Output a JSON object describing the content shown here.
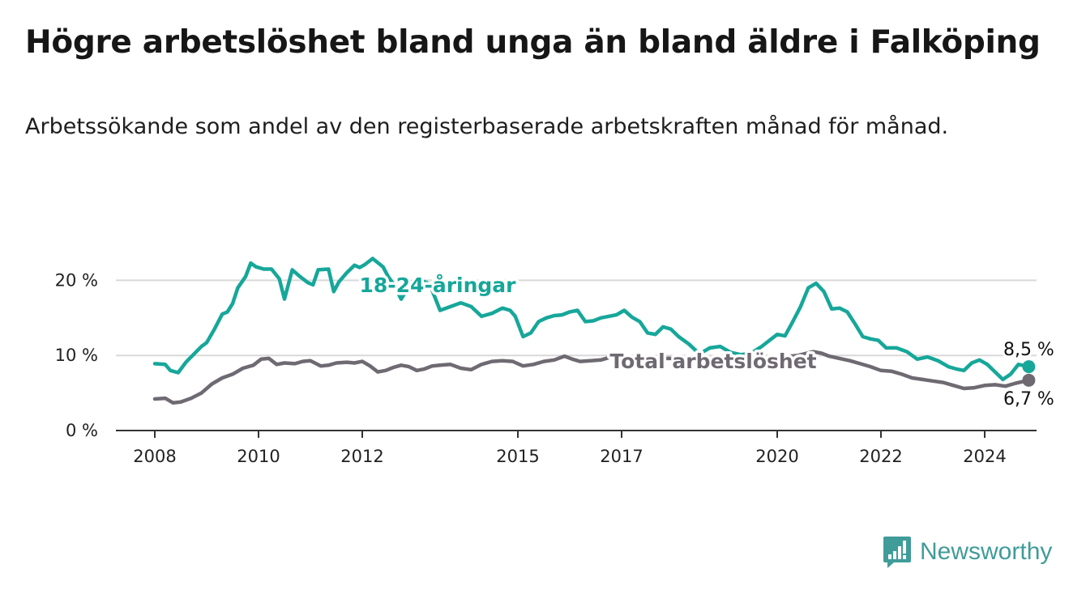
{
  "title": "Högre arbetslöshet bland unga än bland äldre i Falköping",
  "subtitle": "Arbetssökande som andel av den registerbaserade arbetskraften månad för månad.",
  "brand": "Newsworthy",
  "colors": {
    "young": "#16a79a",
    "total": "#6f6a72",
    "grid": "#d9d9d9",
    "axis": "#333333"
  },
  "chart_data": {
    "type": "line",
    "title": "Högre arbetslöshet bland unga än bland äldre i Falköping",
    "xlabel": "",
    "ylabel": "",
    "ylim": [
      0,
      25
    ],
    "xlim": [
      2007.25,
      2025.0
    ],
    "grid": true,
    "y_ticks": [
      0,
      10,
      20
    ],
    "y_tick_labels": [
      "0 %",
      "10 %",
      "20 %"
    ],
    "x_ticks": [
      2008,
      2010,
      2012,
      2015,
      2017,
      2020,
      2022,
      2024
    ],
    "x_tick_labels": [
      "2008",
      "2010",
      "2012",
      "2015",
      "2017",
      "2020",
      "2022",
      "2024"
    ],
    "series": [
      {
        "name": "18-24-åringar",
        "end_label": "8,5 %",
        "x": [
          2008.0,
          2008.2,
          2008.3,
          2008.45,
          2008.6,
          2008.8,
          2008.9,
          2009.0,
          2009.15,
          2009.3,
          2009.4,
          2009.5,
          2009.6,
          2009.75,
          2009.85,
          2009.95,
          2010.1,
          2010.25,
          2010.4,
          2010.5,
          2010.65,
          2010.8,
          2010.95,
          2011.05,
          2011.15,
          2011.35,
          2011.45,
          2011.55,
          2011.7,
          2011.85,
          2011.95,
          2012.05,
          2012.2,
          2012.4,
          2012.5,
          2012.6,
          2012.75,
          2012.95,
          2013.1,
          2013.3,
          2013.5,
          2013.7,
          2013.9,
          2014.1,
          2014.3,
          2014.5,
          2014.7,
          2014.85,
          2014.95,
          2015.1,
          2015.25,
          2015.4,
          2015.55,
          2015.7,
          2015.85,
          2016.0,
          2016.15,
          2016.3,
          2016.45,
          2016.6,
          2016.75,
          2016.9,
          2017.05,
          2017.2,
          2017.35,
          2017.5,
          2017.65,
          2017.8,
          2017.95,
          2018.1,
          2018.3,
          2018.5,
          2018.7,
          2018.9,
          2019.1,
          2019.3,
          2019.5,
          2019.7,
          2019.85,
          2020.0,
          2020.15,
          2020.3,
          2020.45,
          2020.6,
          2020.75,
          2020.9,
          2021.05,
          2021.2,
          2021.35,
          2021.5,
          2021.65,
          2021.8,
          2021.95,
          2022.1,
          2022.3,
          2022.5,
          2022.7,
          2022.9,
          2023.1,
          2023.3,
          2023.45,
          2023.6,
          2023.75,
          2023.9,
          2024.05,
          2024.2,
          2024.35,
          2024.5,
          2024.65,
          2024.85
        ],
        "values": [
          8.9,
          8.8,
          8.0,
          7.7,
          9.1,
          10.5,
          11.2,
          11.7,
          13.5,
          15.5,
          15.8,
          16.9,
          19.0,
          20.5,
          22.3,
          21.8,
          21.5,
          21.5,
          20.2,
          17.5,
          21.4,
          20.5,
          19.7,
          19.4,
          21.4,
          21.5,
          18.5,
          19.8,
          21.0,
          22.0,
          21.7,
          22.1,
          22.9,
          21.8,
          20.5,
          19.5,
          17.5,
          19.8,
          20.1,
          19.5,
          16.0,
          16.5,
          17.0,
          16.5,
          15.2,
          15.6,
          16.3,
          16.0,
          15.2,
          12.5,
          13.0,
          14.5,
          15.0,
          15.3,
          15.4,
          15.8,
          16.0,
          14.5,
          14.6,
          15.0,
          15.2,
          15.4,
          16.0,
          15.1,
          14.5,
          13.0,
          12.8,
          13.8,
          13.5,
          12.5,
          11.5,
          10.2,
          11.0,
          11.2,
          10.4,
          10.1,
          10.3,
          11.2,
          12.0,
          12.8,
          12.6,
          14.5,
          16.5,
          19.0,
          19.6,
          18.5,
          16.2,
          16.3,
          15.8,
          14.2,
          12.5,
          12.2,
          12.0,
          11.0,
          11.0,
          10.5,
          9.5,
          9.8,
          9.3,
          8.5,
          8.2,
          8.0,
          9.0,
          9.4,
          8.8,
          7.8,
          6.8,
          7.5,
          8.8,
          8.5
        ]
      },
      {
        "name": "Total arbetslöshet",
        "end_label": "6,7 %",
        "x": [
          2008.0,
          2008.2,
          2008.35,
          2008.5,
          2008.7,
          2008.9,
          2009.1,
          2009.3,
          2009.5,
          2009.7,
          2009.9,
          2010.05,
          2010.2,
          2010.35,
          2010.5,
          2010.7,
          2010.85,
          2011.0,
          2011.2,
          2011.35,
          2011.5,
          2011.7,
          2011.85,
          2012.0,
          2012.15,
          2012.3,
          2012.45,
          2012.6,
          2012.75,
          2012.9,
          2013.05,
          2013.2,
          2013.35,
          2013.5,
          2013.7,
          2013.9,
          2014.1,
          2014.3,
          2014.5,
          2014.7,
          2014.9,
          2015.1,
          2015.3,
          2015.5,
          2015.7,
          2015.9,
          2016.05,
          2016.2,
          2016.4,
          2016.6,
          2016.8,
          2017.0,
          2017.2,
          2017.4,
          2017.6,
          2017.8,
          2018.0,
          2018.3,
          2018.6,
          2018.9,
          2019.2,
          2019.5,
          2019.8,
          2020.1,
          2020.4,
          2020.7,
          2020.85,
          2021.0,
          2021.2,
          2021.4,
          2021.6,
          2021.8,
          2022.0,
          2022.2,
          2022.4,
          2022.6,
          2022.8,
          2023.0,
          2023.2,
          2023.4,
          2023.6,
          2023.8,
          2024.0,
          2024.2,
          2024.4,
          2024.6,
          2024.85
        ],
        "values": [
          4.2,
          4.3,
          3.7,
          3.8,
          4.3,
          5.0,
          6.2,
          7.0,
          7.5,
          8.3,
          8.7,
          9.5,
          9.6,
          8.8,
          9.0,
          8.9,
          9.2,
          9.3,
          8.6,
          8.7,
          9.0,
          9.1,
          9.0,
          9.2,
          8.6,
          7.8,
          8.0,
          8.4,
          8.7,
          8.5,
          8.0,
          8.2,
          8.6,
          8.7,
          8.8,
          8.3,
          8.1,
          8.8,
          9.2,
          9.3,
          9.2,
          8.6,
          8.8,
          9.2,
          9.4,
          9.9,
          9.5,
          9.2,
          9.3,
          9.4,
          9.8,
          10.0,
          9.7,
          9.5,
          9.8,
          9.6,
          9.6,
          9.3,
          9.5,
          9.7,
          9.6,
          9.4,
          9.5,
          9.8,
          10.0,
          10.5,
          10.3,
          9.9,
          9.6,
          9.3,
          8.9,
          8.5,
          8.0,
          7.9,
          7.5,
          7.0,
          6.8,
          6.6,
          6.4,
          6.0,
          5.6,
          5.7,
          6.0,
          6.1,
          5.9,
          6.3,
          6.7
        ]
      }
    ]
  }
}
